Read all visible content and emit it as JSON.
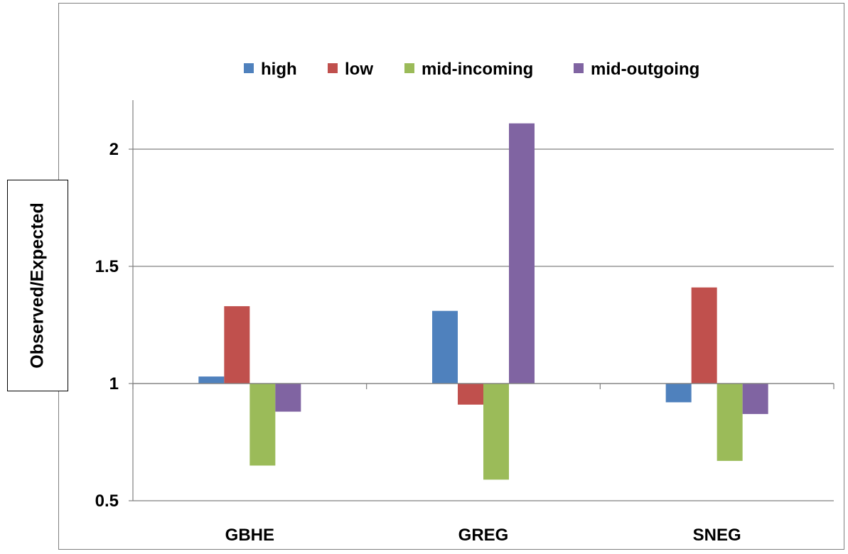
{
  "chart_data": {
    "type": "bar",
    "ylabel": "Observed/Expected",
    "categories": [
      "GBHE",
      "GREG",
      "SNEG"
    ],
    "baseline": 1,
    "ylim": [
      0.5,
      2.2
    ],
    "yticks": [
      0.5,
      1,
      1.5,
      2
    ],
    "ytick_labels": [
      "0.5",
      "1",
      "1.5",
      "2"
    ],
    "grid": true,
    "legend_position": "top",
    "series": [
      {
        "name": "high",
        "color": "#4f81bd",
        "values": [
          1.03,
          1.31,
          0.92
        ]
      },
      {
        "name": "low",
        "color": "#c0504d",
        "values": [
          1.33,
          0.91,
          1.41
        ]
      },
      {
        "name": "mid-incoming",
        "color": "#9bbb59",
        "values": [
          0.65,
          0.59,
          0.67
        ]
      },
      {
        "name": "mid-outgoing",
        "color": "#8064a2",
        "values": [
          0.88,
          2.11,
          0.87
        ]
      }
    ]
  }
}
